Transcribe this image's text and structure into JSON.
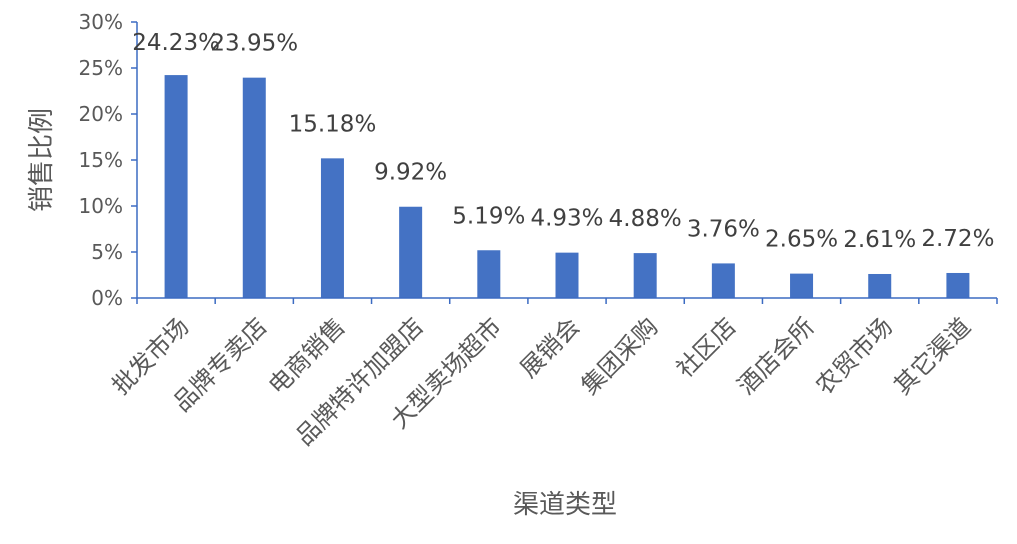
{
  "chart_data": {
    "type": "bar",
    "title": "",
    "xlabel": "渠道类型",
    "ylabel": "销售比例",
    "categories": [
      "批发市场",
      "品牌专卖店",
      "电商销售",
      "品牌特许加盟店",
      "大型卖场超市",
      "展销会",
      "集团采购",
      "社区店",
      "酒店会所",
      "农贸市场",
      "其它渠道"
    ],
    "values": [
      24.23,
      23.95,
      15.18,
      9.92,
      5.19,
      4.93,
      4.88,
      3.76,
      2.65,
      2.61,
      2.72
    ],
    "data_labels": [
      "24.23%",
      "23.95%",
      "15.18%",
      "9.92%",
      "5.19%",
      "4.93%",
      "4.88%",
      "3.76%",
      "2.65%",
      "2.61%",
      "2.72%"
    ],
    "ylim": [
      0,
      30
    ],
    "yticks": [
      0,
      5,
      10,
      15,
      20,
      25,
      30
    ],
    "ytick_labels": [
      "0%",
      "5%",
      "10%",
      "15%",
      "20%",
      "25%",
      "30%"
    ],
    "grid": false,
    "legend": "none",
    "colors": {
      "bar": "#4472C4",
      "axis": "#3c6bc2",
      "text": "#595959",
      "data_label": "#404040"
    }
  }
}
